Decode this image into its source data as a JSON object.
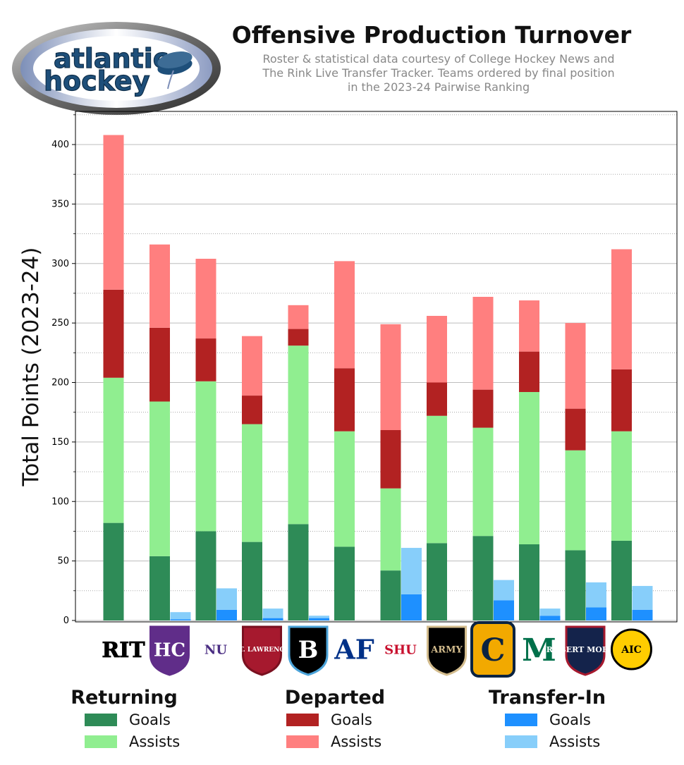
{
  "header": {
    "logo_text_line1": "atlantic",
    "logo_text_line2": "hockey",
    "title": "Offensive Production Turnover",
    "subtitle_lines": [
      "Roster & statistical data courtesy of College Hockey News and",
      "The Rink Live Transfer Tracker. Teams ordered by final position",
      "in the 2023-24 Pairwise Ranking"
    ]
  },
  "colors": {
    "returning_goals": "#2e8b57",
    "returning_assists": "#90ee90",
    "departed_goals": "#b22222",
    "departed_assists": "#ff7f7f",
    "transfer_goals": "#1e90ff",
    "transfer_assists": "#87cefa"
  },
  "chart_data": {
    "type": "bar",
    "stacked": true,
    "ylabel": "Total Points (2023-24)",
    "ylim": [
      0,
      425
    ],
    "yticks": [
      0,
      50,
      100,
      150,
      200,
      250,
      300,
      350,
      400
    ],
    "grid": "horizontal major + minor dotted",
    "team_logos": [
      "RIT",
      "HC",
      "NU",
      "ST. LAWRENCE",
      "B",
      "AF",
      "SHU",
      "ARMY",
      "C",
      "M",
      "ROBERT MORRIS",
      "AIC"
    ],
    "series": [
      {
        "name": "Returning Goals",
        "values": [
          82,
          54,
          75,
          66,
          81,
          62,
          42,
          65,
          71,
          64,
          59,
          67
        ]
      },
      {
        "name": "Returning Assists",
        "values": [
          122,
          130,
          126,
          99,
          150,
          97,
          69,
          107,
          91,
          128,
          84,
          92
        ]
      },
      {
        "name": "Departed Goals",
        "values": [
          74,
          62,
          36,
          24,
          14,
          53,
          49,
          28,
          32,
          34,
          35,
          52
        ]
      },
      {
        "name": "Departed Assists",
        "values": [
          130,
          70,
          67,
          50,
          20,
          90,
          89,
          56,
          78,
          43,
          72,
          101
        ]
      },
      {
        "name": "Transfer-In Goals",
        "values": [
          0,
          1,
          9,
          2,
          2,
          0,
          22,
          0,
          17,
          4,
          11,
          9
        ]
      },
      {
        "name": "Transfer-In Assists",
        "values": [
          0,
          6,
          18,
          8,
          2,
          0,
          39,
          0,
          17,
          6,
          21,
          20
        ]
      }
    ]
  },
  "legend": {
    "returning": {
      "title": "Returning",
      "goals": "Goals",
      "assists": "Assists"
    },
    "departed": {
      "title": "Departed",
      "goals": "Goals",
      "assists": "Assists"
    },
    "transfer": {
      "title": "Transfer-In",
      "goals": "Goals",
      "assists": "Assists"
    }
  }
}
